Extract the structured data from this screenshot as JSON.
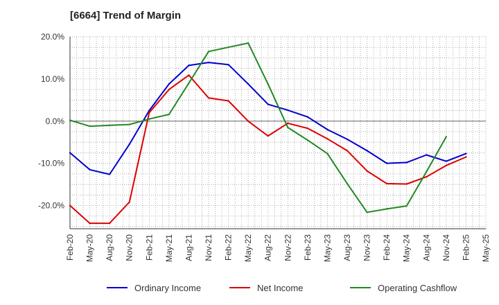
{
  "chart_data": {
    "type": "line",
    "title": "[6664]  Trend of Margin",
    "xlabel": "",
    "ylabel": "",
    "categories": [
      "Feb-20",
      "May-20",
      "Aug-20",
      "Nov-20",
      "Feb-21",
      "May-21",
      "Aug-21",
      "Nov-21",
      "Feb-22",
      "May-22",
      "Aug-22",
      "Nov-22",
      "Feb-23",
      "May-23",
      "Aug-23",
      "Nov-23",
      "Feb-24",
      "May-24",
      "Aug-24",
      "Nov-24",
      "Feb-25",
      "May-25"
    ],
    "ylim": [
      -25.5,
      20.0
    ],
    "yticks": [
      20,
      10,
      0,
      -10,
      -20
    ],
    "ytick_labels": [
      "20.0%",
      "10.0%",
      "0.0%",
      "-10.0%",
      "-20.0%"
    ],
    "grid": true,
    "legend_position": "bottom",
    "series": [
      {
        "name": "Ordinary Income",
        "color": "#0000cc",
        "values": [
          -7.5,
          -11.5,
          -12.6,
          -5.5,
          2.5,
          8.8,
          13.2,
          13.9,
          13.4,
          8.8,
          4.0,
          2.6,
          1.0,
          -2.0,
          -4.3,
          -7.0,
          -10.0,
          -9.8,
          -8.0,
          -9.5,
          -7.7,
          null
        ]
      },
      {
        "name": "Net Income",
        "color": "#dd0000",
        "values": [
          -20.0,
          -24.2,
          -24.2,
          -19.2,
          2.0,
          7.5,
          10.9,
          5.5,
          4.8,
          0.0,
          -3.5,
          -0.5,
          -1.7,
          -4.2,
          -7.0,
          -11.8,
          -14.8,
          -14.9,
          -13.2,
          -10.5,
          -8.5,
          null
        ]
      },
      {
        "name": "Operating Cashflow",
        "color": "#228822",
        "values": [
          0.2,
          -1.2,
          -1.0,
          -0.8,
          0.5,
          1.6,
          9.0,
          16.5,
          17.5,
          18.5,
          8.8,
          -1.5,
          -4.5,
          -7.7,
          -14.8,
          -21.6,
          -20.8,
          -20.1,
          -12.0,
          -3.7,
          null,
          null
        ]
      }
    ]
  }
}
